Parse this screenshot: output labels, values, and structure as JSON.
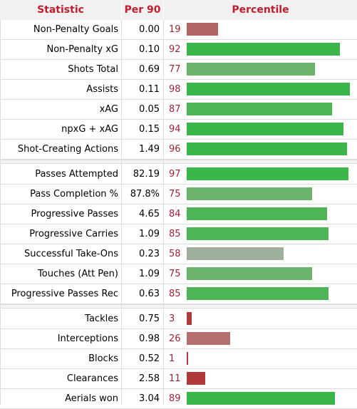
{
  "header": {
    "statistic": "Statistic",
    "per90": "Per 90",
    "percentile": "Percentile"
  },
  "colors": {
    "high": "#3ab54a",
    "mid_high": "#5db860",
    "mid": "#74b474",
    "neutral": "#9cb09c",
    "low": "#b46e6e",
    "very_low": "#b03a3a",
    "header_text": "#be1e2d",
    "pct_text": "#9b2335"
  },
  "groups": [
    {
      "rows": [
        {
          "stat": "Non-Penalty Goals",
          "per90": "0.00",
          "pct": "19",
          "value": 19,
          "color": "#b46666"
        },
        {
          "stat": "Non-Penalty xG",
          "per90": "0.10",
          "pct": "92",
          "value": 92,
          "color": "#3ab54a"
        },
        {
          "stat": "Shots Total",
          "per90": "0.69",
          "pct": "77",
          "value": 77,
          "color": "#6cb46c"
        },
        {
          "stat": "Assists",
          "per90": "0.11",
          "pct": "98",
          "value": 98,
          "color": "#3ab54a"
        },
        {
          "stat": "xAG",
          "per90": "0.05",
          "pct": "87",
          "value": 87,
          "color": "#4db556"
        },
        {
          "stat": "npxG + xAG",
          "per90": "0.15",
          "pct": "94",
          "value": 94,
          "color": "#3ab54a"
        },
        {
          "stat": "Shot-Creating Actions",
          "per90": "1.49",
          "pct": "96",
          "value": 96,
          "color": "#3ab54a"
        }
      ]
    },
    {
      "rows": [
        {
          "stat": "Passes Attempted",
          "per90": "82.19",
          "pct": "97",
          "value": 97,
          "color": "#3ab54a"
        },
        {
          "stat": "Pass Completion %",
          "per90": "87.8%",
          "pct": "75",
          "value": 75,
          "color": "#6cb46c"
        },
        {
          "stat": "Progressive Passes",
          "per90": "4.65",
          "pct": "84",
          "value": 84,
          "color": "#4db556"
        },
        {
          "stat": "Progressive Carries",
          "per90": "1.09",
          "pct": "85",
          "value": 85,
          "color": "#4db556"
        },
        {
          "stat": "Successful Take-Ons",
          "per90": "0.23",
          "pct": "58",
          "value": 58,
          "color": "#9cb09c"
        },
        {
          "stat": "Touches (Att Pen)",
          "per90": "1.09",
          "pct": "75",
          "value": 75,
          "color": "#6cb46c"
        },
        {
          "stat": "Progressive Passes Rec",
          "per90": "0.63",
          "pct": "85",
          "value": 85,
          "color": "#4db556"
        }
      ]
    },
    {
      "rows": [
        {
          "stat": "Tackles",
          "per90": "0.75",
          "pct": "3",
          "value": 3,
          "color": "#b03a3a"
        },
        {
          "stat": "Interceptions",
          "per90": "0.98",
          "pct": "26",
          "value": 26,
          "color": "#b46e6e"
        },
        {
          "stat": "Blocks",
          "per90": "0.52",
          "pct": "1",
          "value": 1,
          "color": "#b03a3a"
        },
        {
          "stat": "Clearances",
          "per90": "2.58",
          "pct": "11",
          "value": 11,
          "color": "#b03a3a"
        },
        {
          "stat": "Aerials won",
          "per90": "3.04",
          "pct": "89",
          "value": 89,
          "color": "#3ab54a"
        }
      ]
    }
  ]
}
